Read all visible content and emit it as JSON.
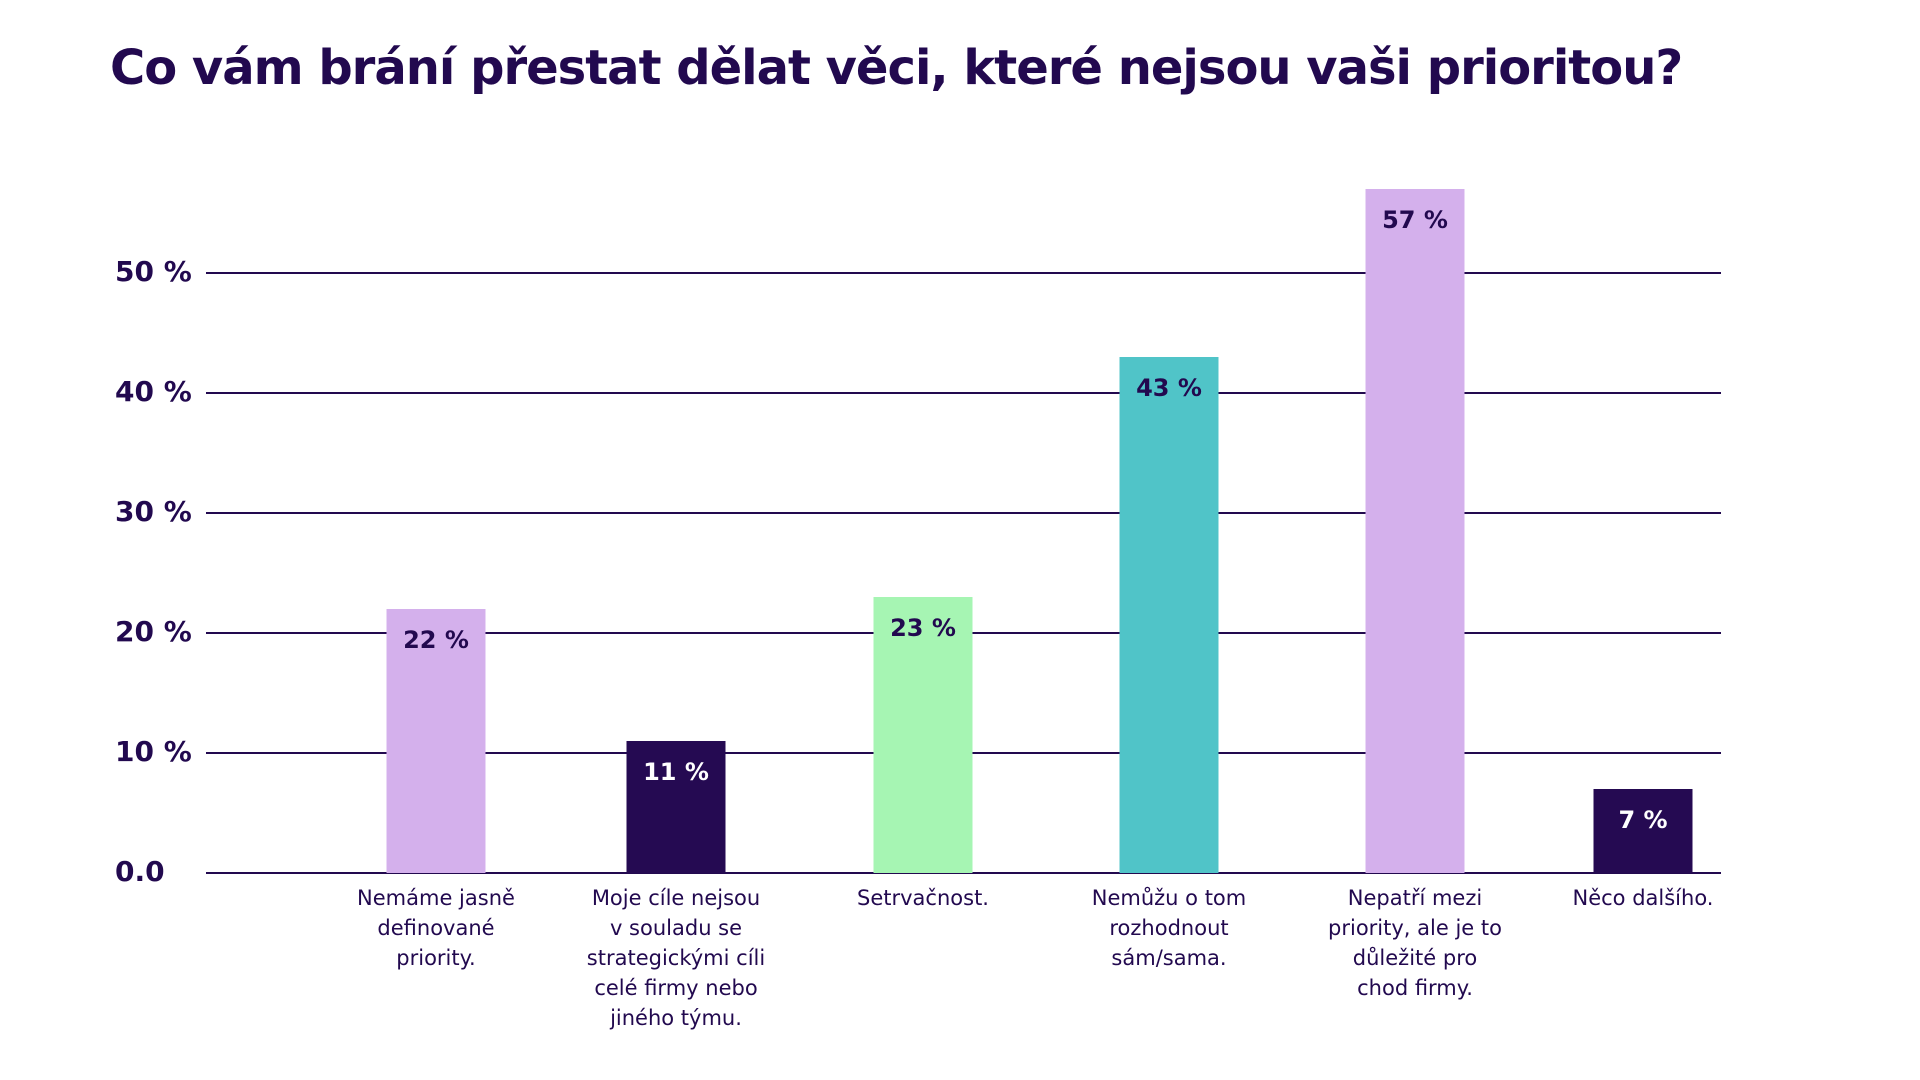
{
  "chart_data": {
    "type": "bar",
    "title": "Co vám brání přestat dělat věci, které nejsou vaši prioritou?",
    "categories": [
      "Nemáme jasně definované priority.",
      "Moje cíle nejsou v souladu se strategickými cíli celé firmy nebo jiného týmu.",
      "Setrvačnost.",
      "Nemůžu o tom rozhodnout sám/sama.",
      "Nepatří mezi priority, ale je to důležité pro chod firmy.",
      "Něco dalšího."
    ],
    "values": [
      22,
      11,
      23,
      43,
      57,
      7
    ],
    "value_labels": [
      "22 %",
      "11 %",
      "23 %",
      "43 %",
      "57 %",
      "7 %"
    ],
    "colors": [
      "#d4b0ec",
      "#250a52",
      "#a6f5b3",
      "#50c4c8",
      "#d4b0ec",
      "#250a52"
    ],
    "ylim": [
      0,
      60
    ],
    "yticks": [
      {
        "value": 0,
        "label": "0.0"
      },
      {
        "value": 10,
        "label": "10 %"
      },
      {
        "value": 20,
        "label": "20 %"
      },
      {
        "value": 30,
        "label": "30 %"
      },
      {
        "value": 40,
        "label": "40 %"
      },
      {
        "value": 50,
        "label": "50 %"
      }
    ],
    "grid": true
  }
}
